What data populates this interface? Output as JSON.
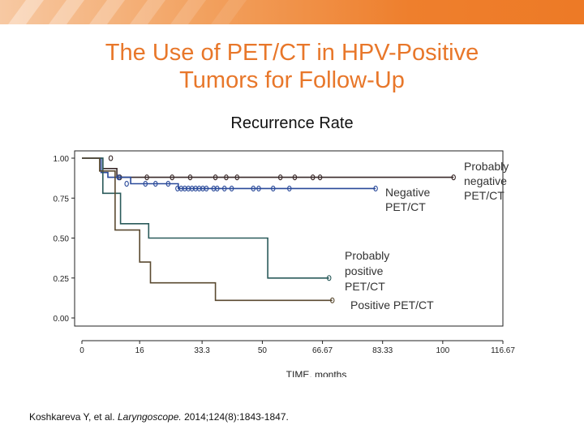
{
  "slide": {
    "title_line1": "The Use of PET/CT in HPV-Positive",
    "title_line2": "Tumors for Follow-Up",
    "citation": {
      "authors": "Koshkareva Y, et al.",
      "journal": "Laryngoscope.",
      "details": "2014;124(8):1843-1847."
    },
    "accent_color": "#e8772a"
  },
  "chart_data": {
    "type": "line",
    "subtitle": "Recurrence Rate",
    "xlabel": "TIME, months",
    "ylabel": "",
    "xlim": [
      0,
      116.67
    ],
    "ylim": [
      0,
      1
    ],
    "x_ticks": [
      0,
      16,
      33.3,
      50,
      66.67,
      83.33,
      100,
      116.67
    ],
    "x_tick_labels": [
      "0",
      "16",
      "33.3",
      "50",
      "66.67",
      "83.33",
      "100",
      "116.67"
    ],
    "y_ticks": [
      0,
      0.25,
      0.5,
      0.75,
      1.0
    ],
    "y_tick_labels": [
      "0.00",
      "0.25",
      "0.50",
      "0.75",
      "1.00"
    ],
    "series": [
      {
        "name": "Probably negative PET/CT",
        "label_lines": [
          "Probably",
          "negative",
          "PET/CT"
        ],
        "color": "#3a2a2a",
        "steps": [
          [
            0,
            1.0
          ],
          [
            5.8,
            1.0
          ],
          [
            5.8,
            0.935
          ],
          [
            9.7,
            0.935
          ],
          [
            9.7,
            0.88
          ],
          [
            103,
            0.88
          ]
        ],
        "censored": [
          [
            8,
            1.0
          ],
          [
            10.5,
            0.88
          ],
          [
            18,
            0.88
          ],
          [
            25,
            0.88
          ],
          [
            30,
            0.88
          ],
          [
            37,
            0.88
          ],
          [
            40,
            0.88
          ],
          [
            43,
            0.88
          ],
          [
            55,
            0.88
          ],
          [
            59,
            0.88
          ],
          [
            64,
            0.88
          ],
          [
            66,
            0.88
          ],
          [
            103,
            0.88
          ]
        ]
      },
      {
        "name": "Negative PET/CT",
        "label_lines": [
          "Negative",
          "PET/CT"
        ],
        "color": "#2a4a9a",
        "steps": [
          [
            0,
            1.0
          ],
          [
            5.3,
            1.0
          ],
          [
            5.3,
            0.91
          ],
          [
            7.2,
            0.91
          ],
          [
            7.2,
            0.88
          ],
          [
            13.5,
            0.88
          ],
          [
            13.5,
            0.84
          ],
          [
            26.7,
            0.84
          ],
          [
            26.7,
            0.81
          ],
          [
            81.4,
            0.81
          ]
        ],
        "censored": [
          [
            10.2,
            0.88
          ],
          [
            12.4,
            0.84
          ],
          [
            17.6,
            0.84
          ],
          [
            20.4,
            0.84
          ],
          [
            23.9,
            0.84
          ],
          [
            26.5,
            0.81
          ],
          [
            27.5,
            0.81
          ],
          [
            28.5,
            0.81
          ],
          [
            29.5,
            0.81
          ],
          [
            30.5,
            0.81
          ],
          [
            31.5,
            0.81
          ],
          [
            32.5,
            0.81
          ],
          [
            33.5,
            0.81
          ],
          [
            34.5,
            0.81
          ],
          [
            36.5,
            0.81
          ],
          [
            37.5,
            0.81
          ],
          [
            39.5,
            0.81
          ],
          [
            41.5,
            0.81
          ],
          [
            47.5,
            0.81
          ],
          [
            49,
            0.81
          ],
          [
            53,
            0.81
          ],
          [
            57.5,
            0.81
          ],
          [
            81.4,
            0.81
          ]
        ]
      },
      {
        "name": "Probably positive PET/CT",
        "label_lines": [
          "Probably",
          "positive",
          "PET/CT"
        ],
        "color": "#2a5a5a",
        "steps": [
          [
            0,
            1.0
          ],
          [
            5.8,
            1.0
          ],
          [
            5.8,
            0.78
          ],
          [
            10.7,
            0.78
          ],
          [
            10.7,
            0.59
          ],
          [
            18.5,
            0.59
          ],
          [
            18.5,
            0.5
          ],
          [
            51.5,
            0.5
          ],
          [
            51.5,
            0.25
          ],
          [
            68.5,
            0.25
          ]
        ],
        "censored": [
          [
            68.5,
            0.25
          ]
        ]
      },
      {
        "name": "Positive PET/CT",
        "label_lines": [
          "Positive PET/CT"
        ],
        "color": "#5a4a30",
        "steps": [
          [
            0,
            1.0
          ],
          [
            4.9,
            1.0
          ],
          [
            4.9,
            0.92
          ],
          [
            9.2,
            0.92
          ],
          [
            9.2,
            0.55
          ],
          [
            16,
            0.55
          ],
          [
            16,
            0.35
          ],
          [
            19,
            0.35
          ],
          [
            19,
            0.22
          ],
          [
            37,
            0.22
          ],
          [
            37,
            0.11
          ],
          [
            69.4,
            0.11
          ]
        ],
        "censored": [
          [
            69.4,
            0.11
          ]
        ]
      }
    ]
  }
}
